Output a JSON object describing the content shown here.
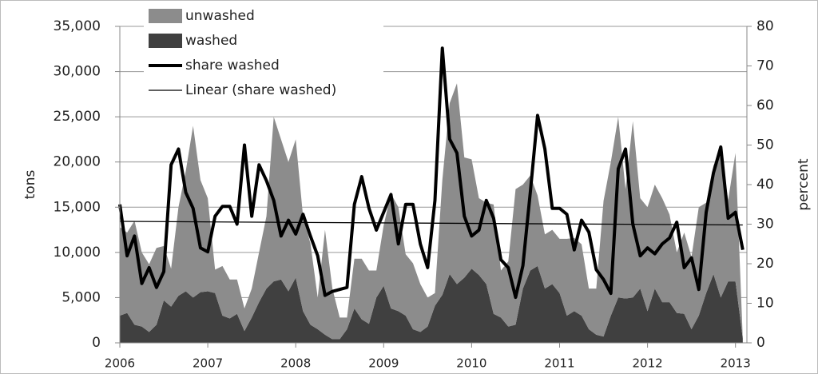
{
  "chart_data": {
    "type": "stacked-area-line",
    "x": [
      2006,
      2006.083,
      2006.167,
      2006.25,
      2006.333,
      2006.417,
      2006.5,
      2006.583,
      2006.667,
      2006.75,
      2006.833,
      2006.917,
      2007,
      2007.083,
      2007.167,
      2007.25,
      2007.333,
      2007.417,
      2007.5,
      2007.583,
      2007.667,
      2007.75,
      2007.833,
      2007.917,
      2008,
      2008.083,
      2008.167,
      2008.25,
      2008.333,
      2008.417,
      2008.5,
      2008.583,
      2008.667,
      2008.75,
      2008.833,
      2008.917,
      2009,
      2009.083,
      2009.167,
      2009.25,
      2009.333,
      2009.417,
      2009.5,
      2009.583,
      2009.667,
      2009.75,
      2009.833,
      2009.917,
      2010,
      2010.083,
      2010.167,
      2010.25,
      2010.333,
      2010.417,
      2010.5,
      2010.583,
      2010.667,
      2010.75,
      2010.833,
      2010.917,
      2011,
      2011.083,
      2011.167,
      2011.25,
      2011.333,
      2011.417,
      2011.5,
      2011.583,
      2011.667,
      2011.75,
      2011.833,
      2011.917,
      2012,
      2012.083,
      2012.167,
      2012.25,
      2012.333,
      2012.417,
      2012.5,
      2012.583,
      2012.667,
      2012.75,
      2012.833,
      2012.917,
      2013,
      2013.083
    ],
    "series": [
      {
        "name": "washed",
        "color": "#404040",
        "stack": true,
        "values": [
          3000,
          3300,
          2000,
          1800,
          1200,
          2000,
          4700,
          4000,
          5200,
          5700,
          5000,
          5600,
          5700,
          5500,
          3000,
          2700,
          3200,
          1300,
          2800,
          4500,
          6000,
          6800,
          7000,
          5700,
          7200,
          3500,
          2000,
          1500,
          900,
          400,
          400,
          1500,
          3800,
          2600,
          2100,
          5000,
          6300,
          3800,
          3500,
          3000,
          1500,
          1200,
          1800,
          4100,
          5300,
          7600,
          6500,
          7200,
          8200,
          7500,
          6500,
          3200,
          2800,
          1800,
          2000,
          6000,
          8000,
          8500,
          6000,
          6500,
          5500,
          3000,
          3500,
          3000,
          1500,
          900,
          700,
          3000,
          5000,
          4900,
          5000,
          6000,
          3500,
          6000,
          4500,
          4500,
          3300,
          3200,
          1500,
          3000,
          5500,
          7600,
          5000,
          6800,
          6800,
          500
        ]
      },
      {
        "name": "unwashed",
        "color": "#8c8c8c",
        "stack": true,
        "values": [
          9800,
          8900,
          11500,
          8200,
          7500,
          8500,
          6000,
          4200,
          9800,
          13300,
          19000,
          12400,
          10300,
          2600,
          5500,
          4300,
          3800,
          2500,
          3200,
          5500,
          8000,
          18200,
          15500,
          14300,
          15300,
          10500,
          9000,
          3500,
          11600,
          5600,
          2400,
          1300,
          5500,
          6700,
          5900,
          3000,
          6700,
          12700,
          11500,
          6800,
          7300,
          5300,
          3200,
          1400,
          12700,
          18900,
          22200,
          13300,
          12100,
          8500,
          9000,
          12100,
          5200,
          7200,
          15000,
          11500,
          10500,
          7800,
          6000,
          6000,
          6000,
          8500,
          8100,
          7900,
          4500,
          5100,
          15000,
          17000,
          20000,
          12100,
          19500,
          10000,
          11500,
          11500,
          11500,
          9700,
          6700,
          9000,
          8000,
          12000,
          10000,
          12000,
          16300,
          9000,
          14200,
          0
        ]
      },
      {
        "name": "share washed",
        "color": "#000000",
        "axis": "y2",
        "width": 4,
        "values": [
          35,
          22,
          27,
          15,
          19,
          14,
          18,
          45,
          49,
          38,
          34,
          24,
          23,
          32,
          34.5,
          34.5,
          30,
          50,
          32,
          45,
          41,
          36,
          27,
          31,
          27.5,
          32.5,
          27,
          22,
          12,
          13,
          13.5,
          14,
          35,
          42,
          34,
          28.5,
          33,
          37.5,
          25,
          35,
          35,
          25,
          19,
          36,
          74.5,
          51.5,
          48,
          32,
          27,
          28.5,
          36,
          31.5,
          21,
          19,
          11.5,
          19.5,
          38,
          57.5,
          49,
          34,
          34,
          32.5,
          23.5,
          31,
          28,
          18.5,
          16,
          12.5,
          44,
          49,
          30,
          22,
          24,
          22.5,
          25,
          26.5,
          30.5,
          19,
          21.5,
          13.5,
          33,
          43,
          49.5,
          31.5,
          33,
          23.5
        ]
      },
      {
        "name": "Linear (share washed)",
        "color": "#000000",
        "axis": "y2",
        "width": 1.3,
        "x": [
          2006,
          2013.083
        ],
        "values": [
          30.7,
          29.8
        ]
      }
    ],
    "y_label": "tons",
    "y2_label": "percent",
    "xlim": [
      2006,
      2013.13
    ],
    "xticks": [
      2006,
      2007,
      2008,
      2009,
      2010,
      2011,
      2012,
      2013
    ],
    "ylim": [
      0,
      35000
    ],
    "yticks": [
      0,
      {
        "value": 5000,
        "label": "5,000"
      },
      {
        "value": 10000,
        "label": "10,000"
      },
      {
        "value": 15000,
        "label": "15,000"
      },
      {
        "value": 20000,
        "label": "20,000"
      },
      {
        "value": 25000,
        "label": "25,000"
      },
      {
        "value": 30000,
        "label": "30,000"
      },
      {
        "value": 35000,
        "label": "35,000"
      }
    ],
    "y2lim": [
      0,
      80
    ],
    "y2ticks": [
      0,
      10,
      20,
      30,
      40,
      50,
      60,
      70,
      80
    ],
    "grid": true,
    "legend": "top-left"
  }
}
